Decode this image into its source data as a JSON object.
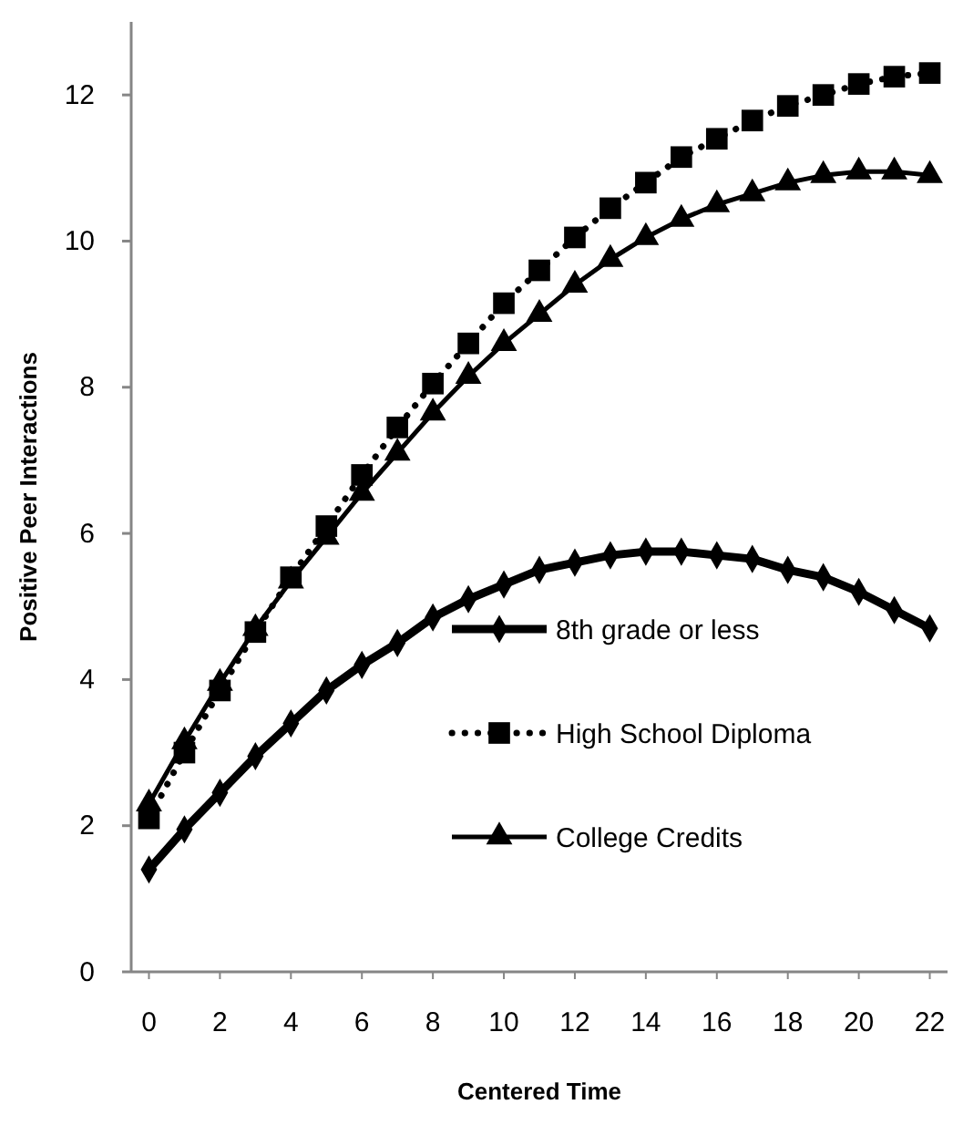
{
  "chart_data": {
    "type": "line",
    "xlabel": "Centered Time",
    "ylabel": "Positive Peer Interactions",
    "x": [
      0,
      1,
      2,
      3,
      4,
      5,
      6,
      7,
      8,
      9,
      10,
      11,
      12,
      13,
      14,
      15,
      16,
      17,
      18,
      19,
      20,
      21,
      22
    ],
    "xlim": [
      -0.5,
      22.5
    ],
    "xticks": [
      0,
      2,
      4,
      6,
      8,
      10,
      12,
      14,
      16,
      18,
      20,
      22
    ],
    "ylim": [
      0,
      13
    ],
    "yticks": [
      0,
      2,
      4,
      6,
      8,
      10,
      12
    ],
    "grid": false,
    "legend": "right",
    "series": [
      {
        "name": "8th grade or less",
        "color": "#000000",
        "marker": "diamond",
        "line_style": "solid",
        "values": [
          1.4,
          1.95,
          2.45,
          2.95,
          3.4,
          3.85,
          4.2,
          4.5,
          4.85,
          5.1,
          5.3,
          5.5,
          5.6,
          5.7,
          5.75,
          5.75,
          5.7,
          5.65,
          5.5,
          5.4,
          5.2,
          4.95,
          4.7
        ]
      },
      {
        "name": "High School Diploma",
        "color": "#000000",
        "marker": "square",
        "line_style": "dotted",
        "values": [
          2.1,
          3.0,
          3.85,
          4.65,
          5.4,
          6.1,
          6.8,
          7.45,
          8.05,
          8.6,
          9.15,
          9.6,
          10.05,
          10.45,
          10.8,
          11.15,
          11.4,
          11.65,
          11.85,
          12.0,
          12.15,
          12.25,
          12.3
        ]
      },
      {
        "name": "College Credits",
        "color": "#000000",
        "marker": "triangle",
        "line_style": "solid",
        "values": [
          2.3,
          3.15,
          3.95,
          4.7,
          5.35,
          5.95,
          6.55,
          7.1,
          7.65,
          8.15,
          8.6,
          9.0,
          9.4,
          9.75,
          10.05,
          10.3,
          10.5,
          10.65,
          10.8,
          10.9,
          10.95,
          10.95,
          10.9
        ]
      }
    ]
  }
}
